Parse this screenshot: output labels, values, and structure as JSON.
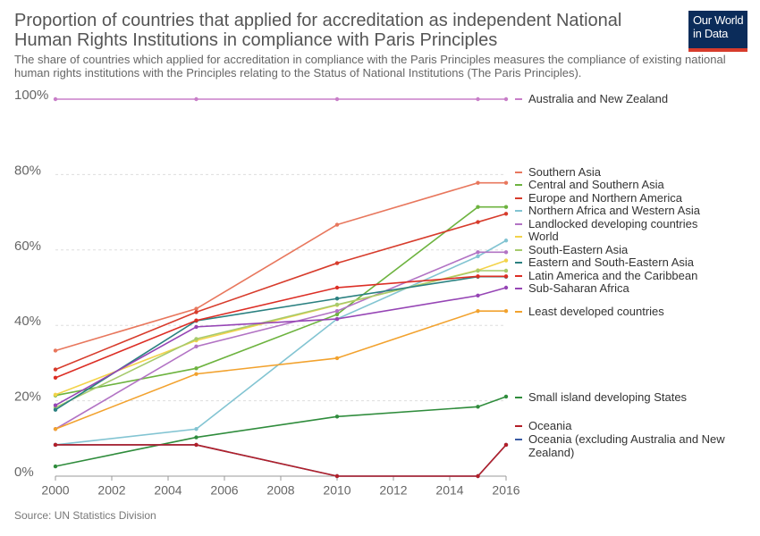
{
  "title": "Proportion of countries that applied for accreditation as independent National Human Rights Institutions in compliance with Paris Principles",
  "subtitle": "The share of countries which applied for accreditation in compliance with the Paris Principles measures the compliance of existing national human rights institutions with the Principles relating to the Status of National Institutions (The Paris Principles).",
  "source": "Source: UN Statistics Division",
  "logo": "Our World in Data",
  "chart_data": {
    "type": "line",
    "x": [
      2000,
      2005,
      2010,
      2015,
      2016
    ],
    "xlim": [
      2000,
      2016
    ],
    "xticks": [
      2000,
      2002,
      2004,
      2006,
      2008,
      2010,
      2012,
      2014,
      2016
    ],
    "ylim": [
      0,
      100
    ],
    "yticks": [
      {
        "value": 0,
        "label": "0%"
      },
      {
        "value": 20,
        "label": "20%"
      },
      {
        "value": 40,
        "label": "40%"
      },
      {
        "value": 60,
        "label": "60%"
      },
      {
        "value": 80,
        "label": "80%"
      },
      {
        "value": 100,
        "label": "100%"
      }
    ],
    "grid": true,
    "series": [
      {
        "name": "Australia and New Zealand",
        "color": "#c87ec8",
        "values": [
          100,
          100,
          100,
          100,
          100
        ]
      },
      {
        "name": "Southern Asia",
        "color": "#e8775d",
        "values": [
          33.3,
          44.4,
          66.7,
          77.8,
          77.8
        ]
      },
      {
        "name": "Central and Southern Asia",
        "color": "#6db33f",
        "values": [
          21.4,
          28.6,
          42.9,
          71.4,
          71.4
        ]
      },
      {
        "name": "Europe and Northern America",
        "color": "#d73c2c",
        "values": [
          28.3,
          43.5,
          56.5,
          67.4,
          69.6
        ]
      },
      {
        "name": "Northern Africa and Western Asia",
        "color": "#82c4d2",
        "values": [
          8.3,
          12.5,
          41.7,
          58.3,
          62.5
        ]
      },
      {
        "name": "Landlocked developing countries",
        "color": "#b273c4",
        "values": [
          12.5,
          34.4,
          43.8,
          59.4,
          59.4
        ]
      },
      {
        "name": "World",
        "color": "#f3d34a",
        "values": [
          21.6,
          36,
          45.4,
          54.6,
          57.2
        ]
      },
      {
        "name": "South-Eastern Asia",
        "color": "#a6ca6c",
        "values": [
          18.2,
          36.4,
          45.5,
          54.5,
          54.5
        ]
      },
      {
        "name": "Eastern and South-Eastern Asia",
        "color": "#2a8080",
        "values": [
          17.6,
          41.2,
          47.1,
          52.9,
          52.9
        ]
      },
      {
        "name": "Latin America and the Caribbean",
        "color": "#dc2e25",
        "values": [
          26.1,
          41.3,
          50,
          53,
          53
        ]
      },
      {
        "name": "Sub-Saharan Africa",
        "color": "#9645b5",
        "values": [
          18.8,
          39.6,
          41.7,
          47.9,
          50
        ]
      },
      {
        "name": "Least developed countries",
        "color": "#f2a22e",
        "values": [
          12.5,
          27.1,
          31.3,
          43.8,
          43.8
        ]
      },
      {
        "name": "Small island developing States",
        "color": "#2f8c3c",
        "values": [
          2.6,
          10.3,
          15.8,
          18.4,
          21.1
        ]
      },
      {
        "name": "Oceania (excluding Australia and New Zealand)",
        "color": "#3a5ba3",
        "values": [
          8.3,
          8.3,
          0,
          0,
          8.3
        ]
      },
      {
        "name": "Oceania",
        "color": "#b31f28",
        "values": [
          8.3,
          8.3,
          0,
          0,
          8.3
        ]
      }
    ]
  }
}
